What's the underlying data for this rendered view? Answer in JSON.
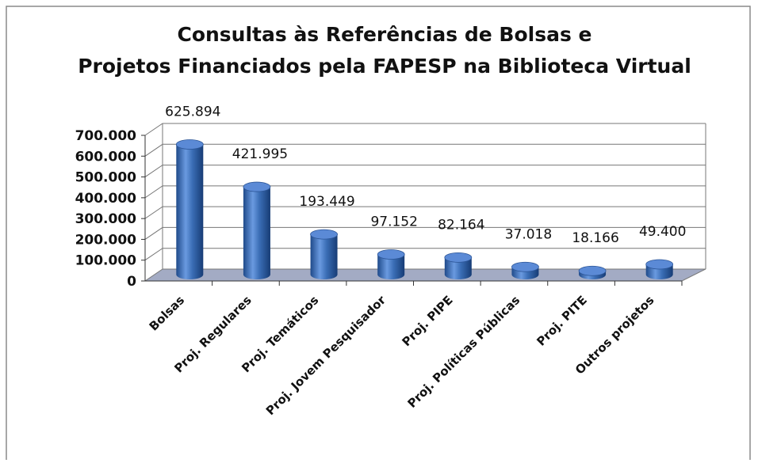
{
  "chart_data": {
    "type": "bar3d",
    "title": "Consultas às Referências de Bolsas e Projetos Financiados pela FAPESP na Biblioteca Virtual",
    "categories": [
      "Bolsas",
      "Proj. Regulares",
      "Proj. Temáticos",
      "Proj. Jovem Pesquisador",
      "Proj. PIPE",
      "Proj. Políticas Públicas",
      "Proj. PITE",
      "Outros projetos"
    ],
    "values": [
      625894,
      421995,
      193449,
      97152,
      82164,
      37018,
      18166,
      49400
    ],
    "value_labels": [
      "625.894",
      "421.995",
      "193.449",
      "97.152",
      "82.164",
      "37.018",
      "18.166",
      "49.400"
    ],
    "color": "#3a6db5",
    "ylim": [
      0,
      700000
    ],
    "yticks": [
      0,
      {
        "value": 100000,
        "label": "100.000"
      },
      {
        "value": 200000,
        "label": "200.000"
      },
      {
        "value": 300000,
        "label": "300.000"
      },
      {
        "value": 400000,
        "label": "400.000"
      },
      {
        "value": 500000,
        "label": "500.000"
      },
      {
        "value": 600000,
        "label": "600.000"
      },
      {
        "value": 700000,
        "label": "700.000"
      }
    ],
    "grid": true
  }
}
